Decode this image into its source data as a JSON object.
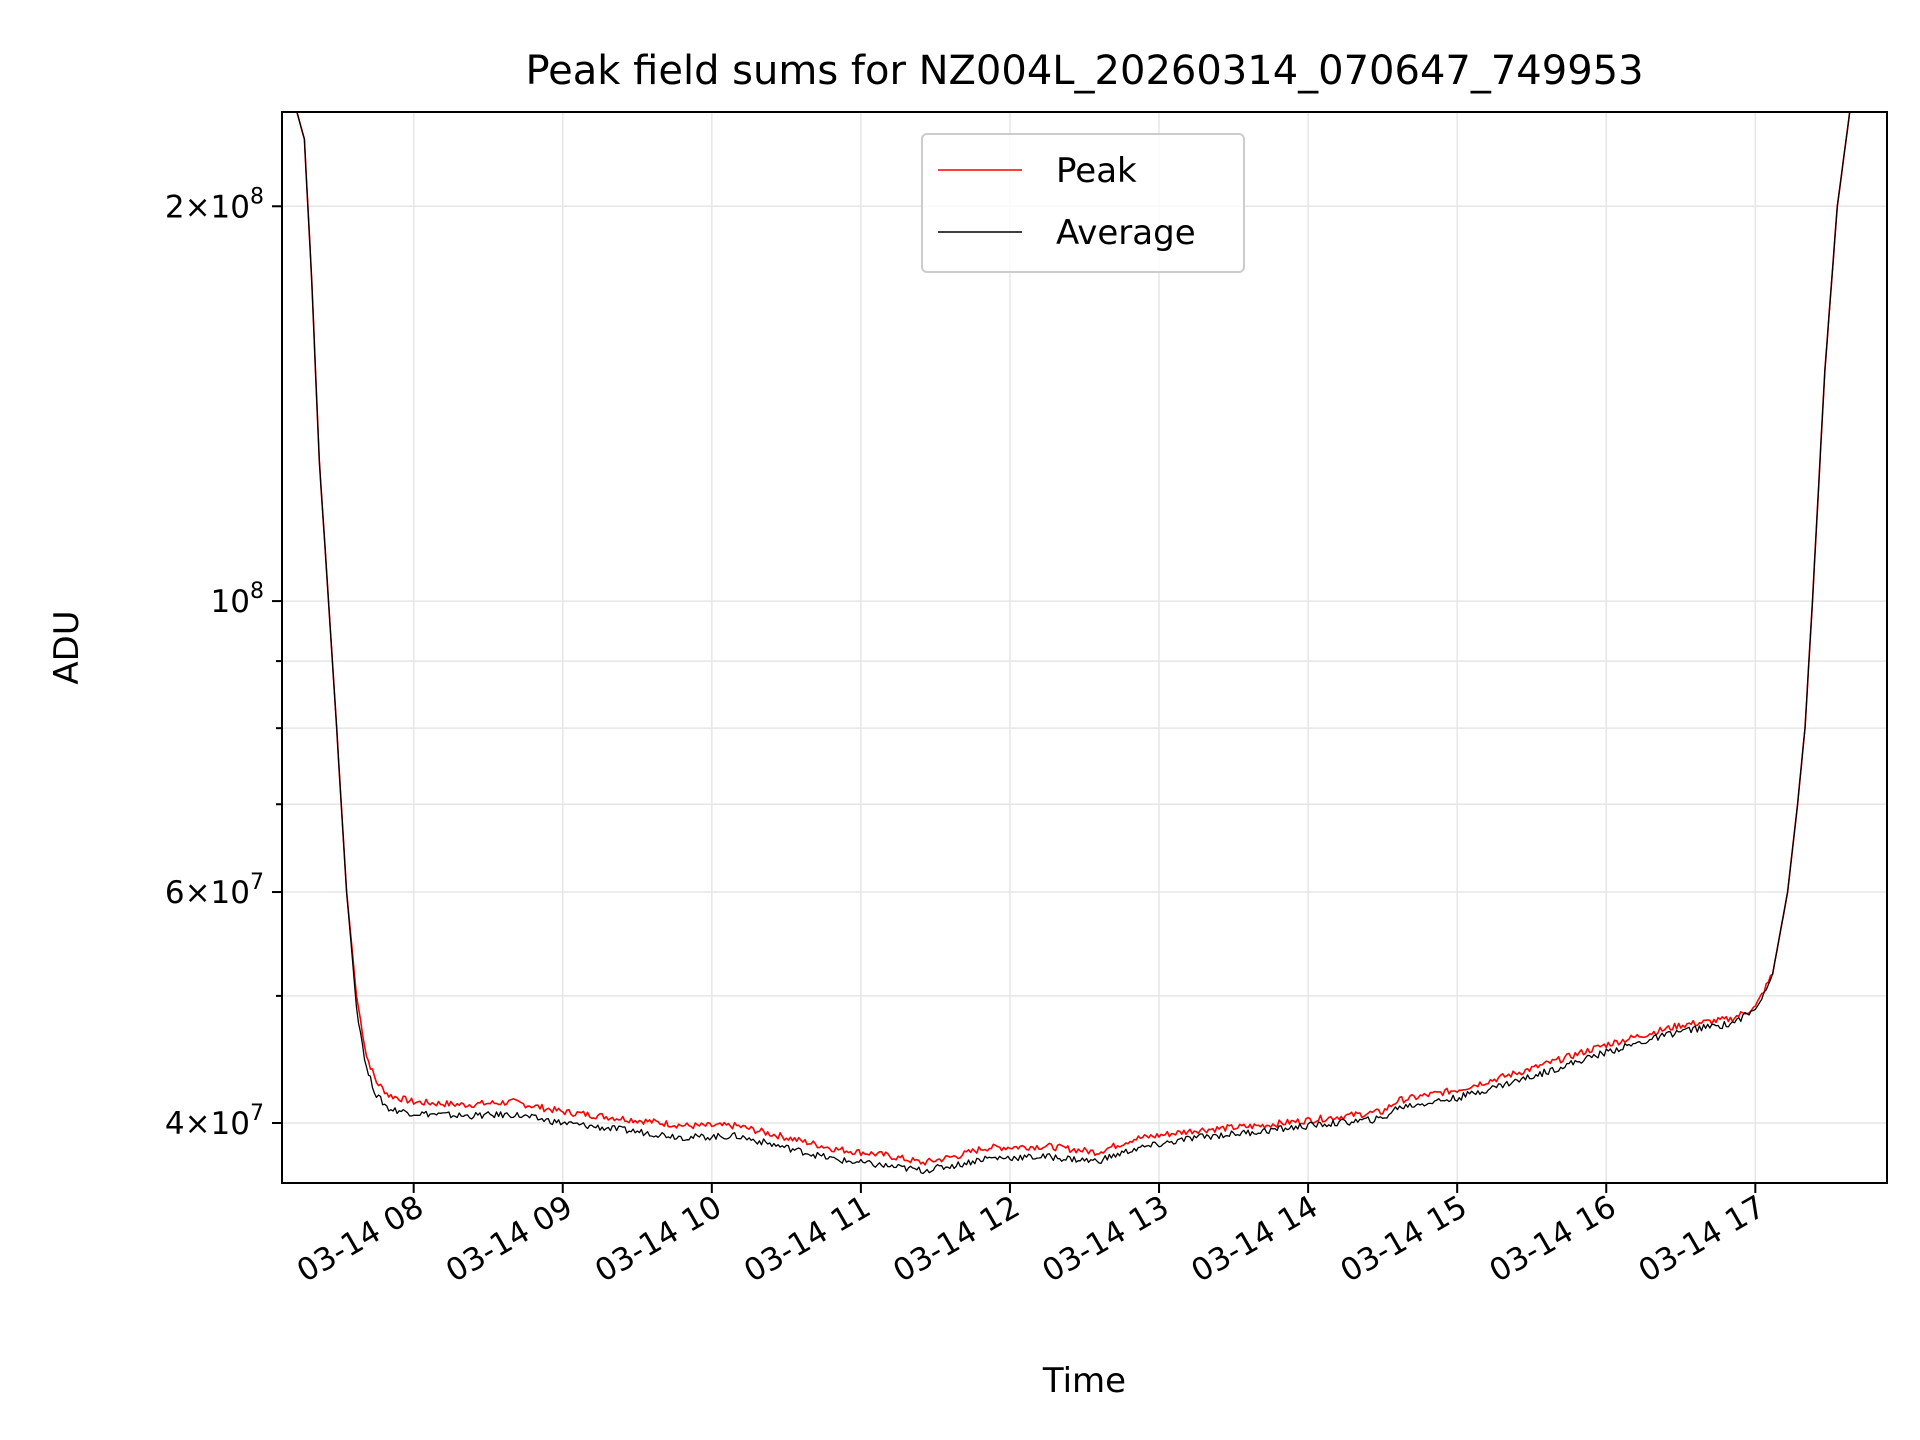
{
  "chart_data": {
    "type": "line",
    "title": "Peak field sums for NZ004L_20260314_070647_749953",
    "xlabel": "Time",
    "ylabel": "ADU",
    "y_scale": "log",
    "grid": true,
    "legend_placement": "upper-center",
    "x_range": [
      "2026-03-14 07:07",
      "2026-03-14 17:53"
    ],
    "y_range": [
      36000000,
      236000000
    ],
    "x_ticks": [
      {
        "value": "2026-03-14 08:00",
        "label": "03-14 08"
      },
      {
        "value": "2026-03-14 09:00",
        "label": "03-14 09"
      },
      {
        "value": "2026-03-14 10:00",
        "label": "03-14 10"
      },
      {
        "value": "2026-03-14 11:00",
        "label": "03-14 11"
      },
      {
        "value": "2026-03-14 12:00",
        "label": "03-14 12"
      },
      {
        "value": "2026-03-14 13:00",
        "label": "03-14 13"
      },
      {
        "value": "2026-03-14 14:00",
        "label": "03-14 14"
      },
      {
        "value": "2026-03-14 15:00",
        "label": "03-14 15"
      },
      {
        "value": "2026-03-14 16:00",
        "label": "03-14 16"
      },
      {
        "value": "2026-03-14 17:00",
        "label": "03-14 17"
      }
    ],
    "y_ticks": [
      {
        "value": 40000000,
        "base": "4",
        "exponent": "7"
      },
      {
        "value": 60000000,
        "base": "6",
        "exponent": "7"
      },
      {
        "value": 100000000,
        "base": "",
        "exponent": "8"
      },
      {
        "value": 200000000,
        "base": "2",
        "exponent": "8"
      }
    ],
    "y_minor_ticks": [
      50000000,
      70000000,
      80000000,
      90000000
    ],
    "series": [
      {
        "name": "Peak",
        "color": "#ff0000",
        "points": [
          [
            "2026-03-14 07:07",
            236000000
          ],
          [
            "2026-03-14 07:13",
            236000000
          ],
          [
            "2026-03-14 07:16",
            225000000
          ],
          [
            "2026-03-14 07:19",
            175000000
          ],
          [
            "2026-03-14 07:22",
            128000000
          ],
          [
            "2026-03-14 07:25",
            105000000
          ],
          [
            "2026-03-14 07:29",
            80000000
          ],
          [
            "2026-03-14 07:33",
            60000000
          ],
          [
            "2026-03-14 07:37",
            50000000
          ],
          [
            "2026-03-14 07:41",
            45000000
          ],
          [
            "2026-03-14 07:45",
            43000000
          ],
          [
            "2026-03-14 07:50",
            42000000
          ],
          [
            "2026-03-14 08:00",
            41500000
          ],
          [
            "2026-03-14 08:20",
            41300000
          ],
          [
            "2026-03-14 08:40",
            41500000
          ],
          [
            "2026-03-14 09:00",
            40800000
          ],
          [
            "2026-03-14 09:30",
            40200000
          ],
          [
            "2026-03-14 09:50",
            39800000
          ],
          [
            "2026-03-14 10:10",
            39800000
          ],
          [
            "2026-03-14 10:30",
            39000000
          ],
          [
            "2026-03-14 10:50",
            38200000
          ],
          [
            "2026-03-14 11:10",
            37800000
          ],
          [
            "2026-03-14 11:25",
            37300000
          ],
          [
            "2026-03-14 11:40",
            37800000
          ],
          [
            "2026-03-14 11:50",
            38300000
          ],
          [
            "2026-03-14 12:15",
            38400000
          ],
          [
            "2026-03-14 12:35",
            38000000
          ],
          [
            "2026-03-14 12:50",
            38900000
          ],
          [
            "2026-03-14 13:15",
            39500000
          ],
          [
            "2026-03-14 13:40",
            39800000
          ],
          [
            "2026-03-14 14:00",
            40200000
          ],
          [
            "2026-03-14 14:30",
            40800000
          ],
          [
            "2026-03-14 14:36",
            41600000
          ],
          [
            "2026-03-14 15:00",
            42400000
          ],
          [
            "2026-03-14 15:30",
            44000000
          ],
          [
            "2026-03-14 16:00",
            45900000
          ],
          [
            "2026-03-14 16:30",
            47500000
          ],
          [
            "2026-03-14 16:50",
            48000000
          ],
          [
            "2026-03-14 17:00",
            49000000
          ],
          [
            "2026-03-14 17:07",
            52000000
          ],
          [
            "2026-03-14 17:13",
            60000000
          ],
          [
            "2026-03-14 17:17",
            70000000
          ],
          [
            "2026-03-14 17:20",
            80000000
          ],
          [
            "2026-03-14 17:23",
            100000000
          ],
          [
            "2026-03-14 17:28",
            150000000
          ],
          [
            "2026-03-14 17:33",
            200000000
          ],
          [
            "2026-03-14 17:38",
            236000000
          ],
          [
            "2026-03-14 17:53",
            236000000
          ]
        ]
      },
      {
        "name": "Average",
        "color": "#000000",
        "points": [
          [
            "2026-03-14 07:07",
            236000000
          ],
          [
            "2026-03-14 07:13",
            236000000
          ],
          [
            "2026-03-14 07:16",
            225000000
          ],
          [
            "2026-03-14 07:19",
            175000000
          ],
          [
            "2026-03-14 07:22",
            128000000
          ],
          [
            "2026-03-14 07:25",
            105000000
          ],
          [
            "2026-03-14 07:29",
            80000000
          ],
          [
            "2026-03-14 07:33",
            60000000
          ],
          [
            "2026-03-14 07:37",
            49000000
          ],
          [
            "2026-03-14 07:41",
            44000000
          ],
          [
            "2026-03-14 07:45",
            42000000
          ],
          [
            "2026-03-14 07:50",
            41000000
          ],
          [
            "2026-03-14 08:00",
            40700000
          ],
          [
            "2026-03-14 08:20",
            40500000
          ],
          [
            "2026-03-14 08:40",
            40600000
          ],
          [
            "2026-03-14 09:00",
            40000000
          ],
          [
            "2026-03-14 09:30",
            39400000
          ],
          [
            "2026-03-14 09:50",
            39000000
          ],
          [
            "2026-03-14 10:10",
            39100000
          ],
          [
            "2026-03-14 10:30",
            38300000
          ],
          [
            "2026-03-14 10:50",
            37500000
          ],
          [
            "2026-03-14 11:10",
            37100000
          ],
          [
            "2026-03-14 11:25",
            36800000
          ],
          [
            "2026-03-14 11:40",
            37200000
          ],
          [
            "2026-03-14 11:50",
            37600000
          ],
          [
            "2026-03-14 12:15",
            37700000
          ],
          [
            "2026-03-14 12:35",
            37400000
          ],
          [
            "2026-03-14 12:50",
            38200000
          ],
          [
            "2026-03-14 13:15",
            39000000
          ],
          [
            "2026-03-14 13:40",
            39400000
          ],
          [
            "2026-03-14 14:00",
            39800000
          ],
          [
            "2026-03-14 14:30",
            40300000
          ],
          [
            "2026-03-14 14:36",
            41100000
          ],
          [
            "2026-03-14 15:00",
            41800000
          ],
          [
            "2026-03-14 15:30",
            43400000
          ],
          [
            "2026-03-14 16:00",
            45300000
          ],
          [
            "2026-03-14 16:30",
            47000000
          ],
          [
            "2026-03-14 16:50",
            47600000
          ],
          [
            "2026-03-14 17:00",
            48800000
          ],
          [
            "2026-03-14 17:07",
            52000000
          ],
          [
            "2026-03-14 17:13",
            60000000
          ],
          [
            "2026-03-14 17:17",
            70000000
          ],
          [
            "2026-03-14 17:20",
            80000000
          ],
          [
            "2026-03-14 17:23",
            100000000
          ],
          [
            "2026-03-14 17:28",
            150000000
          ],
          [
            "2026-03-14 17:33",
            200000000
          ],
          [
            "2026-03-14 17:38",
            236000000
          ],
          [
            "2026-03-14 17:53",
            236000000
          ]
        ]
      }
    ]
  }
}
